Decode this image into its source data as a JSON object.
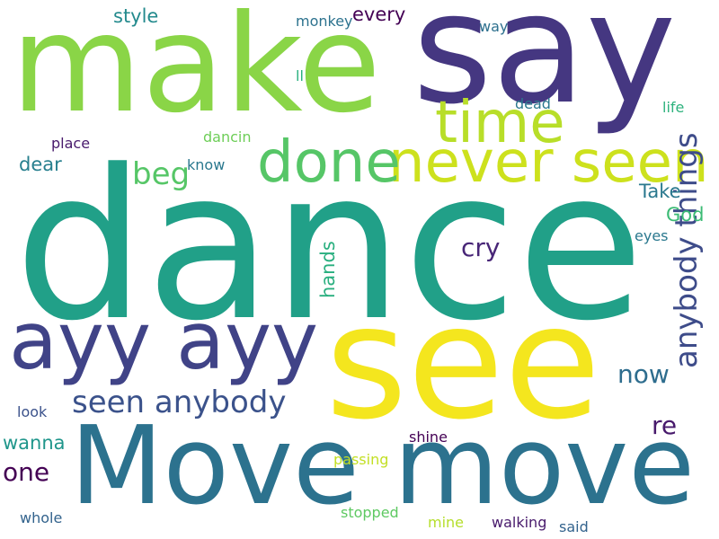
{
  "words": [
    {
      "text": "dance",
      "color": "#21a088"
    },
    {
      "text": "say",
      "color": "#453781"
    },
    {
      "text": "make",
      "color": "#8ad547"
    },
    {
      "text": "see",
      "color": "#f4e61e"
    },
    {
      "text": "Move move",
      "color": "#2c728e"
    },
    {
      "text": "ayy ayy",
      "color": "#404387"
    },
    {
      "text": "never seen",
      "color": "#cde11d"
    },
    {
      "text": "done",
      "color": "#56c667"
    },
    {
      "text": "time",
      "color": "#b8de29"
    },
    {
      "text": "seen anybody",
      "color": "#3b528b"
    },
    {
      "text": "anybody things",
      "color": "#3e4c8a"
    },
    {
      "text": "beg",
      "color": "#56c667"
    },
    {
      "text": "now",
      "color": "#2e6d8e"
    },
    {
      "text": "cry",
      "color": "#482677"
    },
    {
      "text": "one",
      "color": "#440154"
    },
    {
      "text": "re",
      "color": "#481a6c"
    },
    {
      "text": "wanna",
      "color": "#1f968b"
    },
    {
      "text": "hands",
      "color": "#29af7f"
    },
    {
      "text": "dear",
      "color": "#277f8e"
    },
    {
      "text": "style",
      "color": "#238a8d"
    },
    {
      "text": "every",
      "color": "#440154"
    },
    {
      "text": "Take",
      "color": "#2a788e"
    },
    {
      "text": "God",
      "color": "#3cbb75"
    },
    {
      "text": "shine",
      "color": "#440154"
    },
    {
      "text": "passing",
      "color": "#c2df23"
    },
    {
      "text": "walking",
      "color": "#481a6c"
    },
    {
      "text": "stopped",
      "color": "#5ec962"
    },
    {
      "text": "mine",
      "color": "#b5de2b"
    },
    {
      "text": "said",
      "color": "#33638d"
    },
    {
      "text": "whole",
      "color": "#33638d"
    },
    {
      "text": "look",
      "color": "#3b528b"
    },
    {
      "text": "monkey",
      "color": "#2c728e"
    },
    {
      "text": "way",
      "color": "#2d708e"
    },
    {
      "text": "ll",
      "color": "#2ab07f"
    },
    {
      "text": "dead",
      "color": "#2a788e"
    },
    {
      "text": "life",
      "color": "#2db27d"
    },
    {
      "text": "place",
      "color": "#481a6c"
    },
    {
      "text": "dancin",
      "color": "#6ece58"
    },
    {
      "text": "know",
      "color": "#2a788e"
    },
    {
      "text": "eyes",
      "color": "#2a788e"
    }
  ]
}
